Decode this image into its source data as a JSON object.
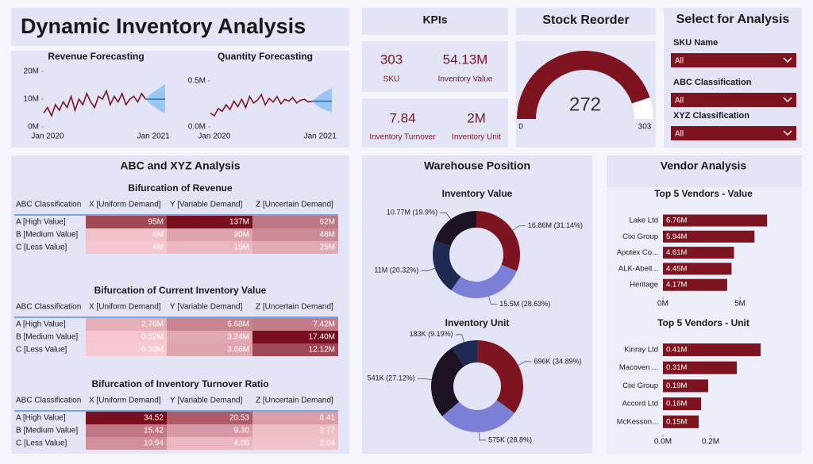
{
  "title": "Dynamic Inventory Analysis",
  "kpis": {
    "title": "KPIs",
    "items": [
      {
        "value": "303",
        "label": "SKU"
      },
      {
        "value": "54.13M",
        "label": "Inventory Value"
      },
      {
        "value": "7.84",
        "label": "Inventory Turnover"
      },
      {
        "value": "2M",
        "label": "Inventory Unit"
      }
    ]
  },
  "slicers": {
    "title": "Select for Analysis",
    "items": [
      {
        "label": "SKU Name",
        "value": "All"
      },
      {
        "label": "ABC Classification",
        "value": "All"
      },
      {
        "label": "XYZ Classification",
        "value": "All"
      }
    ]
  },
  "abc_xyz": {
    "title": "ABC and XYZ Analysis",
    "tables": [
      {
        "title": "Bifurcation of Revenue",
        "header": [
          "ABC Classification",
          "X [Uniform Demand]",
          "Y [Variable Demand]",
          "Z [Uncertain Demand]"
        ],
        "rows": [
          [
            "A [High Value]",
            "95M",
            "137M",
            "62M"
          ],
          [
            "B [Medium Value]",
            "8M",
            "30M",
            "48M"
          ],
          [
            "C [Less Value]",
            "4M",
            "15M",
            "25M"
          ]
        ]
      },
      {
        "title": "Bifurcation of Current Inventory Value",
        "header": [
          "ABC Classification",
          "X [Uniform Demand]",
          "Y [Variable Demand]",
          "Z [Uncertain Demand]"
        ],
        "rows": [
          [
            "A [High Value]",
            "2.76M",
            "6.68M",
            "7.42M"
          ],
          [
            "B [Medium Value]",
            "0.52M",
            "3.24M",
            "17.40M"
          ],
          [
            "C [Less Value]",
            "0.33M",
            "3.66M",
            "12.12M"
          ]
        ]
      },
      {
        "title": "Bifurcation of Inventory Turnover Ratio",
        "header": [
          "ABC Classification",
          "X [Uniform Demand]",
          "Y [Variable Demand]",
          "Z [Uncertain Demand]"
        ],
        "rows": [
          [
            "A [High Value]",
            "34.52",
            "20.53",
            "8.41"
          ],
          [
            "B [Medium Value]",
            "15.42",
            "9.30",
            "2.77"
          ],
          [
            "C [Less Value]",
            "10.94",
            "4.06",
            "2.04"
          ]
        ]
      }
    ]
  },
  "warehouse_title": "Warehouse Position",
  "vendor_title": "Vendor Analysis",
  "chart_data": [
    {
      "type": "line",
      "title": "Revenue Forecasting",
      "categories": [
        null,
        "Jan 2020",
        null,
        null,
        null,
        null,
        null,
        null,
        null,
        null,
        null,
        null,
        null,
        null,
        null,
        null,
        null,
        null,
        null,
        null,
        null,
        null,
        null,
        null,
        null,
        null,
        null,
        null,
        "Jan 2021",
        null,
        null,
        null
      ],
      "series": [
        {
          "color": "#7d1420",
          "values": [
            5000000,
            7000000,
            4000000,
            8000000,
            6000000,
            9000000,
            7000000,
            11000000,
            6000000,
            10000000,
            8000000,
            12000000,
            9000000,
            7000000,
            11000000,
            10000000,
            13000000,
            8000000,
            11000000,
            9000000,
            12000000,
            8000000,
            10000000,
            11000000,
            9000000,
            12000000,
            10000000,
            null,
            null,
            null,
            null,
            null
          ]
        },
        {
          "color": "#2f6fb3",
          "band_color": "#8cc2f0",
          "values": [
            null,
            null,
            null,
            null,
            null,
            null,
            null,
            null,
            null,
            null,
            null,
            null,
            null,
            null,
            null,
            null,
            null,
            null,
            null,
            null,
            null,
            null,
            null,
            null,
            null,
            null,
            10000000,
            10000000,
            10000000,
            10000000,
            10000000,
            10000000
          ],
          "lower": [
            null,
            null,
            null,
            null,
            null,
            null,
            null,
            null,
            null,
            null,
            null,
            null,
            null,
            null,
            null,
            null,
            null,
            null,
            null,
            null,
            null,
            null,
            null,
            null,
            null,
            null,
            10000000,
            8500000,
            7500000,
            6500000,
            5500000,
            5000000
          ],
          "upper": [
            null,
            null,
            null,
            null,
            null,
            null,
            null,
            null,
            null,
            null,
            null,
            null,
            null,
            null,
            null,
            null,
            null,
            null,
            null,
            null,
            null,
            null,
            null,
            null,
            null,
            null,
            10000000,
            11500000,
            12500000,
            13500000,
            14500000,
            15500000
          ]
        }
      ],
      "ylim": [
        0,
        20000000
      ],
      "yticks": [
        {
          "value": 0,
          "label": "0M"
        },
        {
          "value": 10000000,
          "label": "10M"
        },
        {
          "value": 20000000,
          "label": "20M"
        }
      ]
    },
    {
      "type": "line",
      "title": "Quantity Forecasting",
      "categories": [
        null,
        "Jan 2020",
        null,
        null,
        null,
        null,
        null,
        null,
        null,
        null,
        null,
        null,
        null,
        null,
        null,
        null,
        null,
        null,
        null,
        null,
        null,
        null,
        null,
        null,
        null,
        null,
        null,
        null,
        "Jan 2021",
        null,
        null,
        null
      ],
      "series": [
        {
          "color": "#7d1420",
          "values": [
            150000,
            120000,
            200000,
            170000,
            240000,
            190000,
            280000,
            220000,
            300000,
            210000,
            330000,
            260000,
            290000,
            350000,
            240000,
            310000,
            270000,
            330000,
            250000,
            300000,
            280000,
            320000,
            260000,
            290000,
            300000,
            270000,
            280000,
            null,
            null,
            null,
            null,
            null
          ]
        },
        {
          "color": "#2f6fb3",
          "band_color": "#8cc2f0",
          "values": [
            null,
            null,
            null,
            null,
            null,
            null,
            null,
            null,
            null,
            null,
            null,
            null,
            null,
            null,
            null,
            null,
            null,
            null,
            null,
            null,
            null,
            null,
            null,
            null,
            null,
            null,
            280000,
            280000,
            280000,
            280000,
            280000,
            280000
          ],
          "lower": [
            null,
            null,
            null,
            null,
            null,
            null,
            null,
            null,
            null,
            null,
            null,
            null,
            null,
            null,
            null,
            null,
            null,
            null,
            null,
            null,
            null,
            null,
            null,
            null,
            null,
            null,
            280000,
            240000,
            210000,
            190000,
            170000,
            160000
          ],
          "upper": [
            null,
            null,
            null,
            null,
            null,
            null,
            null,
            null,
            null,
            null,
            null,
            null,
            null,
            null,
            null,
            null,
            null,
            null,
            null,
            null,
            null,
            null,
            null,
            null,
            null,
            null,
            280000,
            320000,
            350000,
            380000,
            400000,
            420000
          ]
        }
      ],
      "ylim": [
        0,
        500000
      ],
      "yticks": [
        {
          "value": 0,
          "label": "0.0M"
        },
        {
          "value": 500000,
          "label": "0.5M"
        }
      ]
    },
    {
      "type": "gauge",
      "title": "Stock Reorder",
      "value": 272,
      "min": 0,
      "max": 303,
      "color": "#7d1420"
    },
    {
      "type": "donut",
      "title": "Inventory Value",
      "values": [
        16860000,
        15500000,
        11000000,
        10770000
      ],
      "value_labels": [
        "16.86M (31.14%)",
        "15.5M (28.63%)",
        "11M (20.32%)",
        "10.77M (19.9%)"
      ],
      "colors": [
        "#7d1420",
        "#7b7fd6",
        "#1f2a52",
        "#1c1222"
      ]
    },
    {
      "type": "donut",
      "title": "Inventory Unit",
      "values": [
        696000,
        575000,
        541000,
        183000
      ],
      "value_labels": [
        "696K (34.89%)",
        "575K (28.8%)",
        "541K (27.12%)",
        "183K (9.19%)"
      ],
      "colors": [
        "#7d1420",
        "#7b7fd6",
        "#1c1222",
        "#1f2a52"
      ]
    },
    {
      "type": "hbar",
      "title": "Top 5 Vendors - Value",
      "categories": [
        "Lake Ltd",
        "Cixi Group",
        "Apotex Co...",
        "ALK-Abell...",
        "Heritage"
      ],
      "values": [
        6760000,
        5940000,
        4610000,
        4450000,
        4170000
      ],
      "value_labels": [
        "6.76M",
        "5.94M",
        "4.61M",
        "4.45M",
        "4.17M"
      ],
      "color": "#7d1420",
      "xlim": [
        0,
        8500000
      ],
      "xticks": [
        {
          "value": 0,
          "label": "0M"
        },
        {
          "value": 5000000,
          "label": "5M"
        }
      ]
    },
    {
      "type": "hbar",
      "title": "Top 5 Vendors - Unit",
      "categories": [
        "Kinray Ltd",
        "Macoven ...",
        "Cixi Group",
        "Accord Ltd",
        "McKesson..."
      ],
      "values": [
        410000,
        310000,
        190000,
        160000,
        150000
      ],
      "value_labels": [
        "0.41M",
        "0.31M",
        "0.19M",
        "0.16M",
        "0.15M"
      ],
      "color": "#7d1420",
      "xlim": [
        0,
        550000
      ],
      "xticks": [
        {
          "value": 0,
          "label": "0.0M"
        },
        {
          "value": 200000,
          "label": "0.2M"
        }
      ]
    }
  ]
}
